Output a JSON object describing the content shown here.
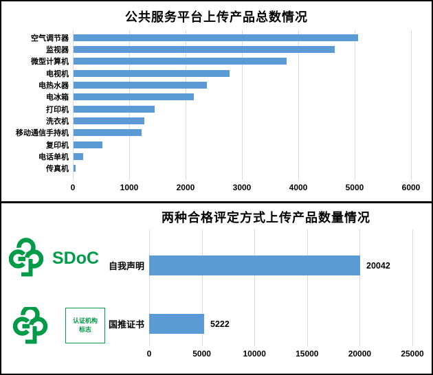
{
  "colors": {
    "bar_blue": "#5b9bd5",
    "logo_green": "#009b48",
    "gridline_gray": "#d9d9d9",
    "border_black": "#000000"
  },
  "logos": {
    "sdoc_text": "SDoC",
    "cert_line1": "认证机构",
    "cert_line2": "标志"
  },
  "chart_data": [
    {
      "type": "bar",
      "orientation": "horizontal",
      "title": "公共服务平台上传产品总数情况",
      "categories": [
        "空气调节器",
        "监视器",
        "微型计算机",
        "电视机",
        "电热水器",
        "电冰箱",
        "打印机",
        "洗衣机",
        "移动通信手持机",
        "复印机",
        "电话单机",
        "传真机"
      ],
      "values": [
        5050,
        4630,
        3780,
        2770,
        2370,
        2130,
        1440,
        1250,
        1210,
        510,
        170,
        40
      ],
      "xlim": [
        0,
        6000
      ],
      "x_ticks": [
        0,
        1000,
        2000,
        3000,
        4000,
        5000,
        6000
      ],
      "xlabel": "",
      "ylabel": "",
      "grid": "vertical",
      "legend": "none",
      "bar_color": "#5b9bd5"
    },
    {
      "type": "bar",
      "orientation": "horizontal",
      "title": "两种合格评定方式上传产品数量情况",
      "categories": [
        "自我声明",
        "国推证书"
      ],
      "values": [
        20042,
        5222
      ],
      "data_labels": [
        "20042",
        "5222"
      ],
      "xlim": [
        0,
        25000
      ],
      "x_ticks": [
        0,
        5000,
        10000,
        15000,
        20000,
        25000
      ],
      "xlabel": "",
      "ylabel": "",
      "grid": "vertical",
      "legend": "none",
      "bar_color": "#5b9bd5"
    }
  ]
}
